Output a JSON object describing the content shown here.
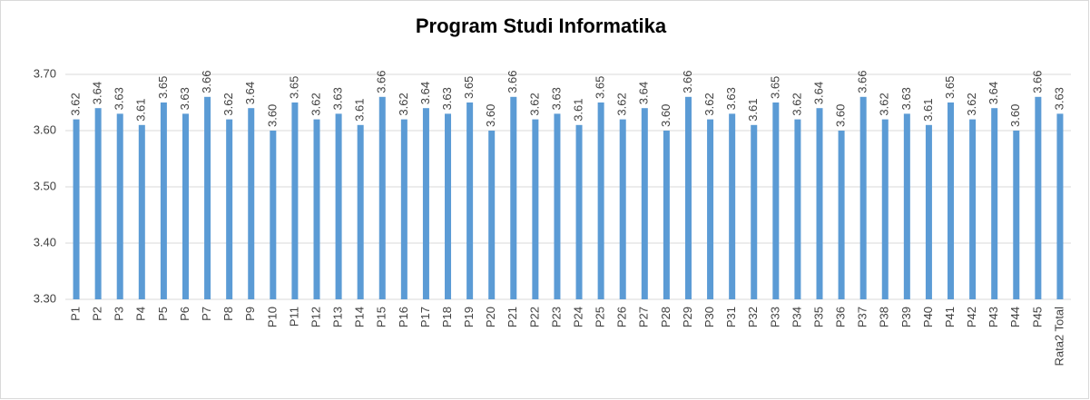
{
  "chart_data": {
    "type": "bar",
    "title": "Program Studi Informatika",
    "categories": [
      "P1",
      "P2",
      "P3",
      "P4",
      "P5",
      "P6",
      "P7",
      "P8",
      "P9",
      "P10",
      "P11",
      "P12",
      "P13",
      "P14",
      "P15",
      "P16",
      "P17",
      "P18",
      "P19",
      "P20",
      "P21",
      "P22",
      "P23",
      "P24",
      "P25",
      "P26",
      "P27",
      "P28",
      "P29",
      "P30",
      "P31",
      "P32",
      "P33",
      "P34",
      "P35",
      "P36",
      "P37",
      "P38",
      "P39",
      "P40",
      "P41",
      "P42",
      "P43",
      "P44",
      "P45",
      "Rata2 Total"
    ],
    "values": [
      3.62,
      3.64,
      3.63,
      3.61,
      3.65,
      3.63,
      3.66,
      3.62,
      3.64,
      3.6,
      3.65,
      3.62,
      3.63,
      3.61,
      3.66,
      3.62,
      3.64,
      3.63,
      3.65,
      3.6,
      3.66,
      3.62,
      3.63,
      3.61,
      3.65,
      3.62,
      3.64,
      3.6,
      3.66,
      3.62,
      3.63,
      3.61,
      3.65,
      3.62,
      3.64,
      3.6,
      3.66,
      3.62,
      3.63,
      3.61,
      3.65,
      3.62,
      3.64,
      3.6,
      3.66,
      3.63
    ],
    "value_labels": [
      "3.62",
      "3.64",
      "3.63",
      "3.61",
      "3.65",
      "3.63",
      "3.66",
      "3.62",
      "3.64",
      "3.60",
      "3.65",
      "3.62",
      "3.63",
      "3.61",
      "3.66",
      "3.62",
      "3.64",
      "3.63",
      "3.65",
      "3.60",
      "3.66",
      "3.62",
      "3.63",
      "3.61",
      "3.65",
      "3.62",
      "3.64",
      "3.60",
      "3.66",
      "3.62",
      "3.63",
      "3.61",
      "3.65",
      "3.62",
      "3.64",
      "3.60",
      "3.66",
      "3.62",
      "3.63",
      "3.61",
      "3.65",
      "3.62",
      "3.64",
      "3.60",
      "3.66",
      "3.63"
    ],
    "color": "#5b9bd5",
    "ylim": [
      3.3,
      3.7
    ],
    "yticks": [
      {
        "value": 3.3,
        "label": "3.30"
      },
      {
        "value": 3.4,
        "label": "3.40"
      },
      {
        "value": 3.5,
        "label": "3.50"
      },
      {
        "value": 3.6,
        "label": "3.60"
      },
      {
        "value": 3.7,
        "label": "3.70"
      }
    ],
    "grid": true
  }
}
